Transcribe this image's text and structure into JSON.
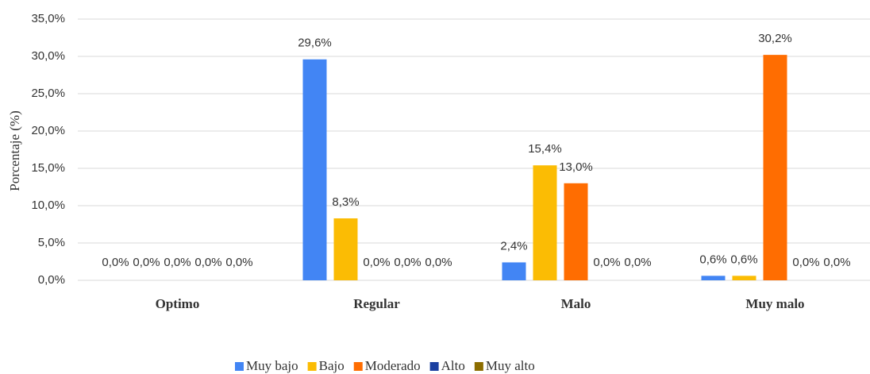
{
  "chart_data": {
    "type": "bar",
    "y_label": "Porcentaje (%)",
    "categories": [
      "Optimo",
      "Regular",
      "Malo",
      "Muy malo"
    ],
    "series": [
      {
        "name": "Muy bajo",
        "color": "#4285f4",
        "values": [
          0,
          29.6,
          2.4,
          0.6
        ],
        "value_labels": [
          "0,0%",
          "29,6%",
          "2,4%",
          "0,6%"
        ]
      },
      {
        "name": "Bajo",
        "color": "#fbbc04",
        "values": [
          0,
          8.3,
          15.4,
          0.6
        ],
        "value_labels": [
          "0,0%",
          "8,3%",
          "15,4%",
          "0,6%"
        ]
      },
      {
        "name": "Moderado",
        "color": "#ff6d01",
        "values": [
          0,
          0,
          13.0,
          30.2
        ],
        "value_labels": [
          "0,0%",
          "0,0%",
          "13,0%",
          "30,2%"
        ]
      },
      {
        "name": "Alto",
        "color": "#1a3fa0",
        "values": [
          0,
          0,
          0,
          0
        ],
        "value_labels": [
          "0,0%",
          "0,0%",
          "0,0%",
          "0,0%"
        ]
      },
      {
        "name": "Muy alto",
        "color": "#8c6d00",
        "values": [
          0,
          0,
          0,
          0
        ],
        "value_labels": [
          "0,0%",
          "0,0%",
          "0,0%",
          "0,0%"
        ]
      }
    ],
    "ylim": [
      0,
      35
    ],
    "yticks": [
      {
        "value": 0,
        "label": "0,0%"
      },
      {
        "value": 5,
        "label": "5,0%"
      },
      {
        "value": 10,
        "label": "10,0%"
      },
      {
        "value": 15,
        "label": "15,0%"
      },
      {
        "value": 20,
        "label": "20,0%"
      },
      {
        "value": 25,
        "label": "25,0%"
      },
      {
        "value": 30,
        "label": "30,0%"
      },
      {
        "value": 35,
        "label": "35,0%"
      }
    ],
    "grid": true,
    "legend": "bottom"
  }
}
